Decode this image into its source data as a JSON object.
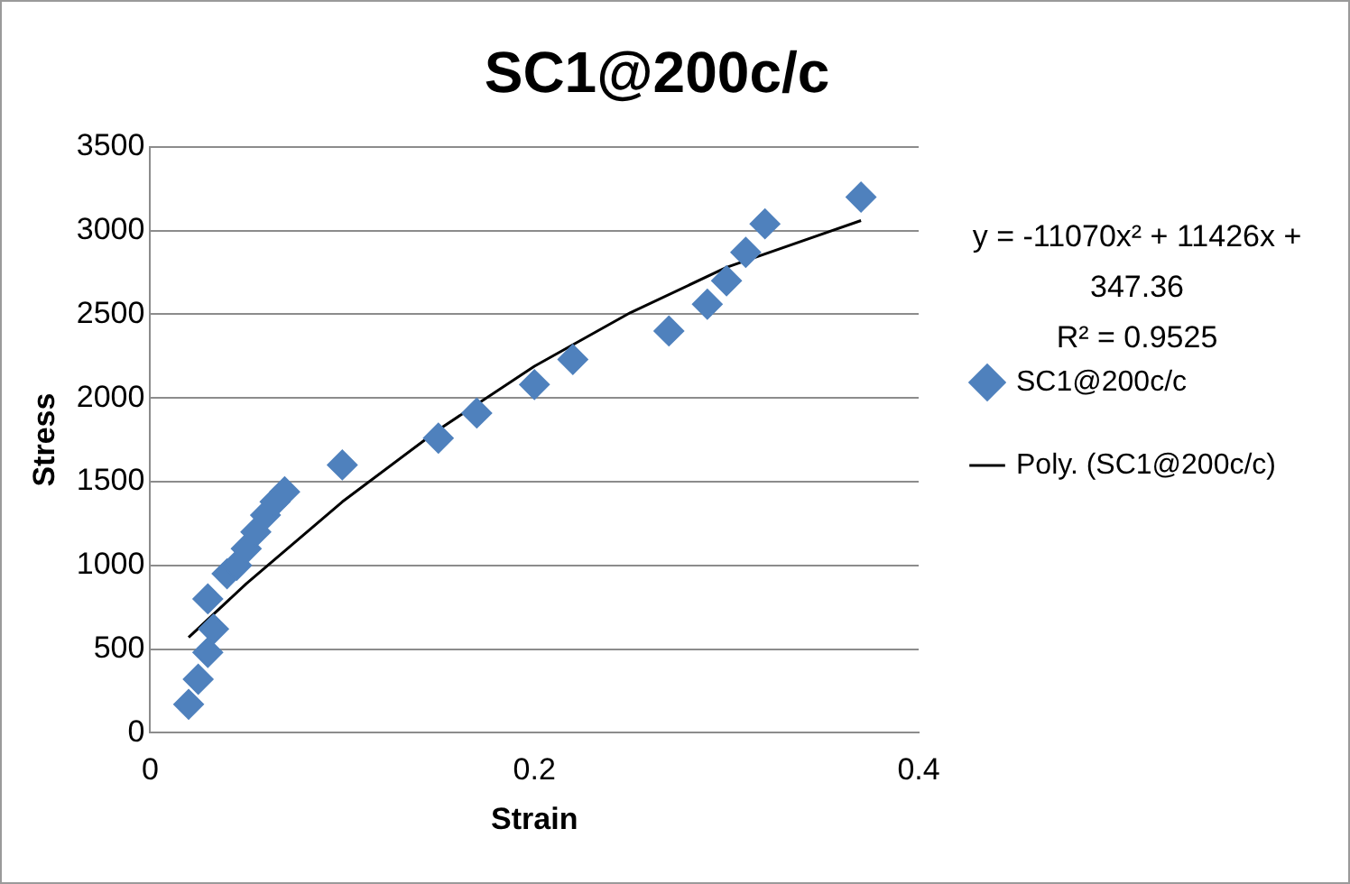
{
  "chart_data": {
    "type": "scatter",
    "title": "SC1@200c/c",
    "xlabel": "Strain",
    "ylabel": "Stress",
    "xlim": [
      0,
      0.4
    ],
    "xticks": [
      0,
      0.2,
      0.4
    ],
    "ylim": [
      0,
      3500
    ],
    "yticks": [
      0,
      500,
      1000,
      1500,
      2000,
      2500,
      3000,
      3500
    ],
    "grid": "y",
    "legend": "right",
    "annotations": [
      "y = -11070x² + 11426x + 347.36",
      "R² = 0.9525"
    ],
    "series": [
      {
        "name": "SC1@200c/c",
        "color": "#4f81bd",
        "marker": "diamond",
        "x": [
          0.02,
          0.025,
          0.03,
          0.033,
          0.03,
          0.04,
          0.045,
          0.05,
          0.055,
          0.06,
          0.065,
          0.07,
          0.1,
          0.15,
          0.17,
          0.2,
          0.22,
          0.27,
          0.29,
          0.3,
          0.31,
          0.32,
          0.37
        ],
        "values": [
          170,
          320,
          480,
          620,
          800,
          950,
          1000,
          1100,
          1200,
          1300,
          1380,
          1440,
          1600,
          1760,
          1910,
          2080,
          2230,
          2400,
          2560,
          2700,
          2870,
          3040,
          3200
        ]
      },
      {
        "type": "line",
        "name": "Poly. (SC1@200c/c)",
        "color": "#000000",
        "marker": "none",
        "x": [
          0.02,
          0.05,
          0.1,
          0.15,
          0.2,
          0.25,
          0.3,
          0.37
        ],
        "values": [
          570,
          890,
          1380,
          1810,
          2190,
          2510,
          2780,
          3060
        ]
      }
    ]
  }
}
